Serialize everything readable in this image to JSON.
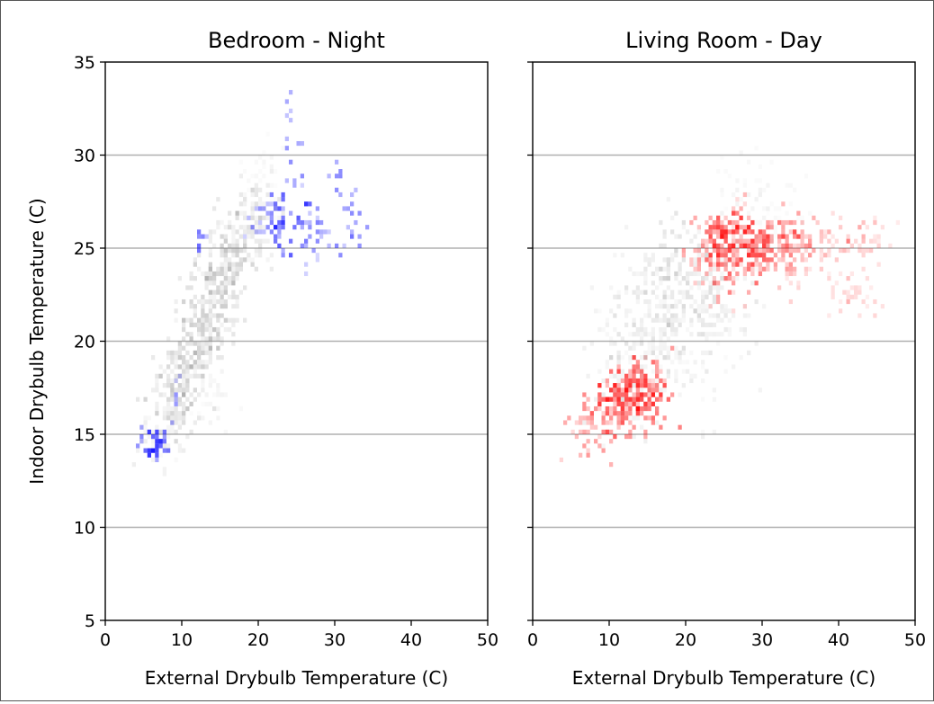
{
  "figure": {
    "ylabel": "Indoor Drybulb Temperature (C)"
  },
  "chart_data": [
    {
      "type": "heatmap",
      "title": "Bedroom - Night",
      "xlabel": "External Drybulb Temperature (C)",
      "xlim": [
        0,
        50
      ],
      "ylim": [
        5,
        35
      ],
      "xticks": [
        "0",
        "10",
        "20",
        "30",
        "40",
        "50"
      ],
      "yticks": [
        "5",
        "10",
        "15",
        "20",
        "25",
        "30",
        "35"
      ],
      "grid": "horizontal",
      "colors": {
        "background_density": "#808080",
        "highlight": "#0000ff"
      },
      "background_clusters": [
        {
          "x": 7,
          "y": 15.0,
          "value": 0.3
        },
        {
          "x": 8,
          "y": 16.0,
          "value": 0.45
        },
        {
          "x": 9,
          "y": 17.0,
          "value": 0.45
        },
        {
          "x": 10,
          "y": 18.0,
          "value": 0.5
        },
        {
          "x": 11,
          "y": 19.0,
          "value": 0.55
        },
        {
          "x": 12,
          "y": 20.0,
          "value": 0.6
        },
        {
          "x": 13,
          "y": 21.0,
          "value": 0.6
        },
        {
          "x": 14,
          "y": 22.0,
          "value": 0.55
        },
        {
          "x": 15,
          "y": 23.0,
          "value": 0.55
        },
        {
          "x": 16,
          "y": 24.0,
          "value": 0.55
        },
        {
          "x": 17,
          "y": 25.0,
          "value": 0.5
        },
        {
          "x": 18,
          "y": 26.0,
          "value": 0.45
        },
        {
          "x": 20,
          "y": 26.5,
          "value": 0.4
        },
        {
          "x": 21,
          "y": 28.8,
          "value": 0.15
        },
        {
          "x": 14,
          "y": 17.2,
          "value": 0.2
        }
      ],
      "highlight_points": [
        {
          "x": 5,
          "y": 14.8,
          "value": 0.7
        },
        {
          "x": 6,
          "y": 14.6,
          "value": 0.8
        },
        {
          "x": 6.5,
          "y": 14.3,
          "value": 0.95
        },
        {
          "x": 7.5,
          "y": 14.6,
          "value": 0.7
        },
        {
          "x": 8,
          "y": 14.9,
          "value": 0.6
        },
        {
          "x": 9.5,
          "y": 17.2,
          "value": 0.5
        },
        {
          "x": 12.5,
          "y": 25.5,
          "value": 0.6
        },
        {
          "x": 19.5,
          "y": 26.2,
          "value": 0.5
        },
        {
          "x": 20.5,
          "y": 26.8,
          "value": 0.6
        },
        {
          "x": 21.5,
          "y": 26.5,
          "value": 0.6
        },
        {
          "x": 22.5,
          "y": 27.5,
          "value": 0.7
        },
        {
          "x": 23,
          "y": 26.5,
          "value": 0.8
        },
        {
          "x": 22.5,
          "y": 25.5,
          "value": 0.6
        },
        {
          "x": 23.5,
          "y": 25.2,
          "value": 0.7
        },
        {
          "x": 24,
          "y": 32.5,
          "value": 0.4
        },
        {
          "x": 24.5,
          "y": 30.5,
          "value": 0.5
        },
        {
          "x": 25,
          "y": 28.5,
          "value": 0.5
        },
        {
          "x": 25.5,
          "y": 27.0,
          "value": 0.6
        },
        {
          "x": 26.5,
          "y": 26.8,
          "value": 0.6
        },
        {
          "x": 27.5,
          "y": 26.5,
          "value": 0.5
        },
        {
          "x": 26,
          "y": 25.4,
          "value": 0.6
        },
        {
          "x": 28,
          "y": 25.5,
          "value": 0.5
        },
        {
          "x": 27,
          "y": 24.4,
          "value": 0.4
        },
        {
          "x": 30,
          "y": 25.3,
          "value": 0.5
        },
        {
          "x": 30.5,
          "y": 29.0,
          "value": 0.5
        },
        {
          "x": 31.5,
          "y": 27.8,
          "value": 0.5
        },
        {
          "x": 32.5,
          "y": 26.8,
          "value": 0.5
        },
        {
          "x": 33,
          "y": 25.6,
          "value": 0.6
        }
      ]
    },
    {
      "type": "heatmap",
      "title": "Living Room - Day",
      "xlabel": "External Drybulb Temperature (C)",
      "xlim": [
        0,
        50
      ],
      "ylim": [
        5,
        35
      ],
      "xticks": [
        "0",
        "10",
        "20",
        "30",
        "40",
        "50"
      ],
      "yticks": [
        "5",
        "10",
        "15",
        "20",
        "25",
        "30",
        "35"
      ],
      "grid": "horizontal",
      "colors": {
        "background_density": "#808080",
        "highlight": "#ff0000"
      },
      "background_clusters": [
        {
          "x": 12,
          "y": 18.0,
          "value": 0.35
        },
        {
          "x": 15,
          "y": 19.5,
          "value": 0.4
        },
        {
          "x": 14,
          "y": 21.5,
          "value": 0.3
        },
        {
          "x": 17,
          "y": 21.0,
          "value": 0.4
        },
        {
          "x": 18,
          "y": 23.0,
          "value": 0.5
        },
        {
          "x": 20,
          "y": 23.5,
          "value": 0.55
        },
        {
          "x": 22,
          "y": 22.0,
          "value": 0.4
        },
        {
          "x": 25,
          "y": 21.5,
          "value": 0.3
        },
        {
          "x": 20,
          "y": 18.5,
          "value": 0.3
        },
        {
          "x": 27,
          "y": 26.5,
          "value": 0.25
        },
        {
          "x": 31,
          "y": 27.5,
          "value": 0.15
        }
      ],
      "highlight_points": [
        {
          "x": 7,
          "y": 15.0,
          "value": 0.5
        },
        {
          "x": 9,
          "y": 16.0,
          "value": 0.6
        },
        {
          "x": 11,
          "y": 17.0,
          "value": 0.8
        },
        {
          "x": 12.5,
          "y": 17.5,
          "value": 0.9
        },
        {
          "x": 14,
          "y": 17.2,
          "value": 0.8
        },
        {
          "x": 15.5,
          "y": 16.8,
          "value": 0.7
        },
        {
          "x": 13,
          "y": 16.0,
          "value": 0.6
        },
        {
          "x": 16,
          "y": 18.0,
          "value": 0.5
        },
        {
          "x": 10,
          "y": 16.5,
          "value": 0.6
        },
        {
          "x": 22,
          "y": 24.5,
          "value": 0.5
        },
        {
          "x": 23.5,
          "y": 25.8,
          "value": 0.6
        },
        {
          "x": 25,
          "y": 25.3,
          "value": 0.8
        },
        {
          "x": 26,
          "y": 25.0,
          "value": 0.7
        },
        {
          "x": 27.5,
          "y": 25.5,
          "value": 0.8
        },
        {
          "x": 29,
          "y": 25.0,
          "value": 0.7
        },
        {
          "x": 30.5,
          "y": 25.5,
          "value": 0.7
        },
        {
          "x": 32,
          "y": 25.0,
          "value": 0.6
        },
        {
          "x": 34,
          "y": 25.3,
          "value": 0.5
        },
        {
          "x": 36,
          "y": 25.2,
          "value": 0.4
        },
        {
          "x": 39,
          "y": 25.4,
          "value": 0.3
        },
        {
          "x": 42,
          "y": 25.0,
          "value": 0.3
        },
        {
          "x": 44.5,
          "y": 25.5,
          "value": 0.25
        },
        {
          "x": 25,
          "y": 23.5,
          "value": 0.5
        },
        {
          "x": 28,
          "y": 24.0,
          "value": 0.4
        },
        {
          "x": 35,
          "y": 24.0,
          "value": 0.3
        },
        {
          "x": 40,
          "y": 23.0,
          "value": 0.2
        },
        {
          "x": 42.5,
          "y": 22.2,
          "value": 0.2
        },
        {
          "x": 26,
          "y": 26.4,
          "value": 0.4
        }
      ]
    }
  ]
}
